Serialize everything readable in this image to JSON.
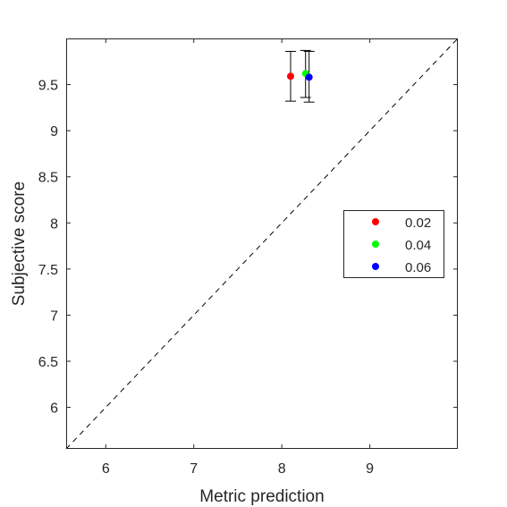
{
  "chart_data": {
    "type": "scatter",
    "title": "",
    "xlabel": "Metric prediction",
    "ylabel": "Subjective score",
    "xlim": [
      5.55,
      10.0
    ],
    "ylim": [
      5.55,
      10.0
    ],
    "xticks": [
      6,
      7,
      8,
      9
    ],
    "yticks": [
      6,
      6.5,
      7,
      7.5,
      8,
      8.5,
      9,
      9.5
    ],
    "xtick_labels": [
      "6",
      "7",
      "8",
      "9"
    ],
    "ytick_labels": [
      "6",
      "6.5",
      "7",
      "7.5",
      "8",
      "8.5",
      "9",
      "9.5"
    ],
    "grid": false,
    "box": true,
    "legend_position": "right",
    "reference_line": {
      "style": "dashed",
      "color": "#000000",
      "from": [
        5.55,
        5.55
      ],
      "to": [
        10.0,
        10.0
      ]
    },
    "series": [
      {
        "name": "0.02",
        "color": "#ff0000",
        "x": 8.1,
        "y": 9.59,
        "ylow": 9.32,
        "yhigh": 9.86
      },
      {
        "name": "0.04",
        "color": "#00ff00",
        "x": 8.27,
        "y": 9.62,
        "ylow": 9.36,
        "yhigh": 9.87
      },
      {
        "name": "0.06",
        "color": "#0000ff",
        "x": 8.31,
        "y": 9.58,
        "ylow": 9.31,
        "yhigh": 9.86
      }
    ]
  }
}
